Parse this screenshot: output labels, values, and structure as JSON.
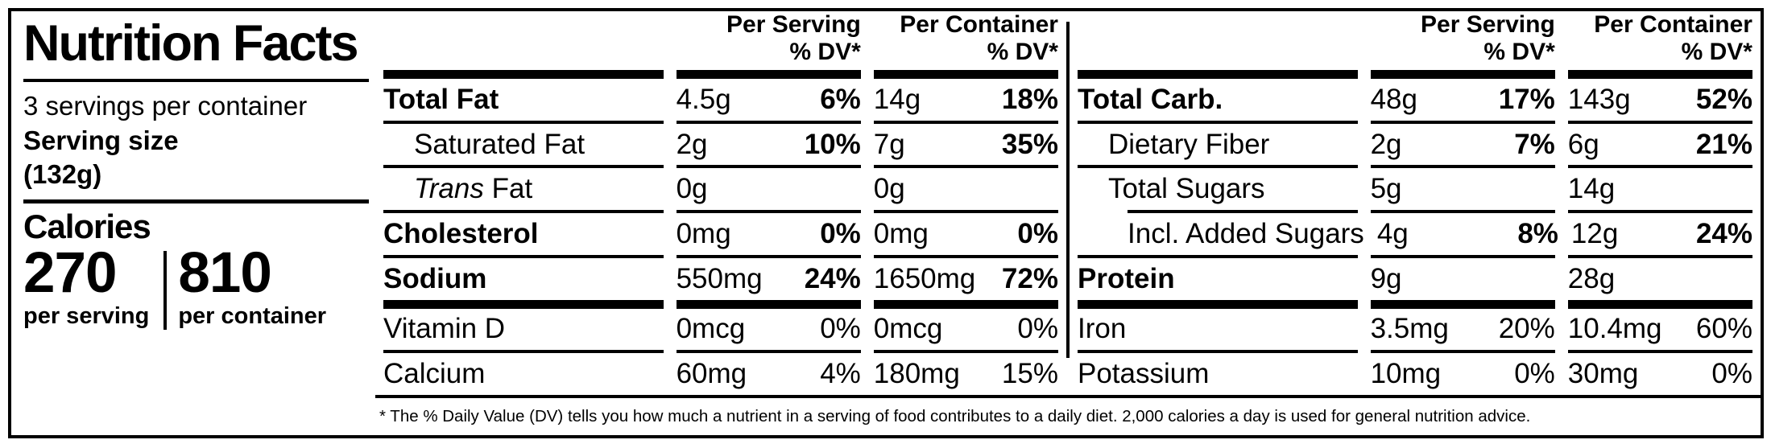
{
  "label": {
    "title": "Nutrition Facts",
    "servings_per_container": "3 servings per container",
    "serving_size_label": "Serving size",
    "serving_size_value": "(132g)",
    "calories": {
      "label": "Calories",
      "per_serving_value": "270",
      "per_serving_label": "per serving",
      "per_container_value": "810",
      "per_container_label": "per container"
    },
    "footnote": "* The % Daily Value (DV) tells you how much a nutrient in a serving of food contributes to a daily diet. 2,000 calories a day is used for general nutrition advice.",
    "colors": {
      "ink": "#000000",
      "paper": "#ffffff"
    }
  },
  "halves": [
    {
      "header": {
        "serving_title": "Per Serving",
        "container_title": "Per Container",
        "dv_title": "% DV*"
      },
      "rows": [
        {
          "id": "total-fat",
          "name": "Total Fat",
          "name_italic": "",
          "bold": true,
          "indent": 0,
          "sep": "bar",
          "serving_amount": "4.5g",
          "serving_dv": "6%",
          "container_amount": "14g",
          "container_dv": "18%",
          "dv_bold": true
        },
        {
          "id": "saturated-fat",
          "name": "Saturated Fat",
          "name_italic": "",
          "bold": false,
          "indent": 1,
          "sep": "line",
          "serving_amount": "2g",
          "serving_dv": "10%",
          "container_amount": "7g",
          "container_dv": "35%",
          "dv_bold": true
        },
        {
          "id": "trans-fat",
          "name": "Fat",
          "name_italic": "Trans ",
          "bold": false,
          "indent": 1,
          "sep": "line",
          "serving_amount": "0g",
          "serving_dv": "",
          "container_amount": "0g",
          "container_dv": "",
          "dv_bold": false
        },
        {
          "id": "cholesterol",
          "name": "Cholesterol",
          "name_italic": "",
          "bold": true,
          "indent": 0,
          "sep": "line",
          "serving_amount": "0mg",
          "serving_dv": "0%",
          "container_amount": "0mg",
          "container_dv": "0%",
          "dv_bold": true
        },
        {
          "id": "sodium",
          "name": "Sodium",
          "name_italic": "",
          "bold": true,
          "indent": 0,
          "sep": "line",
          "serving_amount": "550mg",
          "serving_dv": "24%",
          "container_amount": "1650mg",
          "container_dv": "72%",
          "dv_bold": true
        },
        {
          "id": "vitamin-d",
          "name": "Vitamin D",
          "name_italic": "",
          "bold": false,
          "indent": 0,
          "sep": "bar",
          "serving_amount": "0mcg",
          "serving_dv": "0%",
          "container_amount": "0mcg",
          "container_dv": "0%",
          "dv_bold": false
        },
        {
          "id": "calcium",
          "name": "Calcium",
          "name_italic": "",
          "bold": false,
          "indent": 0,
          "sep": "line",
          "serving_amount": "60mg",
          "serving_dv": "4%",
          "container_amount": "180mg",
          "container_dv": "15%",
          "dv_bold": false
        }
      ]
    },
    {
      "header": {
        "serving_title": "Per Serving",
        "container_title": "Per Container",
        "dv_title": "% DV*"
      },
      "rows": [
        {
          "id": "total-carb",
          "name": "Total Carb.",
          "name_italic": "",
          "bold": true,
          "indent": 0,
          "sep": "bar",
          "serving_amount": "48g",
          "serving_dv": "17%",
          "container_amount": "143g",
          "container_dv": "52%",
          "dv_bold": true
        },
        {
          "id": "dietary-fiber",
          "name": "Dietary Fiber",
          "name_italic": "",
          "bold": false,
          "indent": 1,
          "sep": "line",
          "serving_amount": "2g",
          "serving_dv": "7%",
          "container_amount": "6g",
          "container_dv": "21%",
          "dv_bold": true
        },
        {
          "id": "total-sugars",
          "name": "Total Sugars",
          "name_italic": "",
          "bold": false,
          "indent": 1,
          "sep": "line",
          "serving_amount": "5g",
          "serving_dv": "",
          "container_amount": "14g",
          "container_dv": "",
          "dv_bold": false
        },
        {
          "id": "incl-added-sugars",
          "name": "Incl. Added Sugars",
          "name_italic": "",
          "bold": false,
          "indent": 2,
          "sep": "line-indent",
          "serving_amount": "4g",
          "serving_dv": "8%",
          "container_amount": "12g",
          "container_dv": "24%",
          "dv_bold": true
        },
        {
          "id": "protein",
          "name": "Protein",
          "name_italic": "",
          "bold": true,
          "indent": 0,
          "sep": "line",
          "serving_amount": "9g",
          "serving_dv": "",
          "container_amount": "28g",
          "container_dv": "",
          "dv_bold": false
        },
        {
          "id": "iron",
          "name": "Iron",
          "name_italic": "",
          "bold": false,
          "indent": 0,
          "sep": "bar",
          "serving_amount": "3.5mg",
          "serving_dv": "20%",
          "container_amount": "10.4mg",
          "container_dv": "60%",
          "dv_bold": false
        },
        {
          "id": "potassium",
          "name": "Potassium",
          "name_italic": "",
          "bold": false,
          "indent": 0,
          "sep": "line",
          "serving_amount": "10mg",
          "serving_dv": "0%",
          "container_amount": "30mg",
          "container_dv": "0%",
          "dv_bold": false
        }
      ]
    }
  ]
}
